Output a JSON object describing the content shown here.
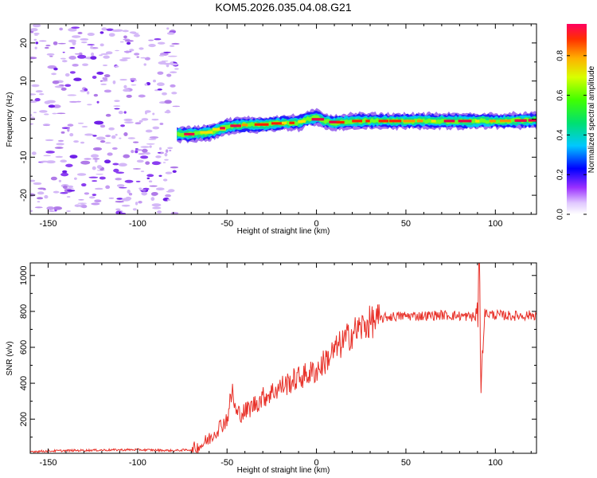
{
  "title": "KOM5.2026.035.04.08.G21",
  "colorbar": {
    "label": "Normalized spectral amplitude",
    "ticks": [
      "0.0",
      "0.2",
      "0.4",
      "0.6",
      "0.8"
    ],
    "tick_values": [
      0.0,
      0.2,
      0.4,
      0.6,
      0.8
    ],
    "range": [
      0,
      0.96
    ]
  },
  "chart_data": [
    {
      "type": "heatmap",
      "name": "spectrogram",
      "xlabel": "Height of straight line (km)",
      "ylabel": "Frequency (Hz)",
      "xlim": [
        -160,
        123
      ],
      "ylim": [
        -25,
        25
      ],
      "xticks": [
        -150,
        -100,
        -50,
        0,
        50,
        100
      ],
      "xtick_labels": [
        "-150",
        "-100",
        "-50",
        "0",
        "50",
        "100"
      ],
      "yticks": [
        -20,
        -10,
        0,
        10,
        20
      ],
      "ytick_labels": [
        "-20",
        "-10",
        "0",
        "10",
        "20"
      ],
      "noise_region_x": [
        -160,
        -78
      ],
      "signal_start_x": -78,
      "ridge": {
        "x": [
          -78,
          -70,
          -60,
          -50,
          -40,
          -30,
          -20,
          -10,
          -5,
          0,
          5,
          10,
          20,
          40,
          60,
          80,
          100,
          123
        ],
        "y": [
          -4,
          -4,
          -3.5,
          -2,
          -1.5,
          -1.5,
          -1,
          -1,
          0,
          0.5,
          -0.5,
          -1,
          -0.5,
          -0.5,
          -0.5,
          -0.5,
          -0.5,
          -0.3
        ]
      }
    },
    {
      "type": "line",
      "name": "snr",
      "xlabel": "Height of straight line (km)",
      "ylabel": "SNR (v/v)",
      "xlim": [
        -160,
        123
      ],
      "ylim": [
        10,
        1070
      ],
      "xticks": [
        -150,
        -100,
        -50,
        0,
        50,
        100
      ],
      "xtick_labels": [
        "-150",
        "-100",
        "-50",
        "0",
        "50",
        "100"
      ],
      "yticks": [
        200,
        400,
        600,
        800,
        1000
      ],
      "ytick_labels": [
        "200",
        "400",
        "600",
        "800",
        "1000"
      ],
      "color": "#e8322a",
      "series": [
        {
          "name": "SNR",
          "x": [
            -160,
            -140,
            -120,
            -100,
            -80,
            -70,
            -65,
            -60,
            -55,
            -50,
            -47,
            -45,
            -40,
            -30,
            -20,
            -10,
            0,
            10,
            20,
            30,
            40,
            50,
            60,
            70,
            80,
            88,
            90,
            91,
            92,
            94,
            100,
            110,
            123
          ],
          "y": [
            20,
            25,
            28,
            30,
            25,
            30,
            50,
            90,
            150,
            200,
            360,
            230,
            240,
            320,
            380,
            430,
            470,
            580,
            680,
            740,
            770,
            775,
            775,
            780,
            775,
            770,
            740,
            1050,
            380,
            790,
            780,
            775,
            780
          ]
        }
      ]
    }
  ]
}
